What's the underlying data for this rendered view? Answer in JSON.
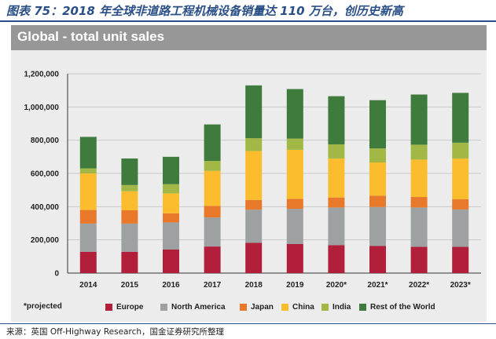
{
  "figure_title": "图表 75：2018 年全球非道路工程机械设备销量达 110 万台，创历史新高",
  "panel_title": "Global - total unit sales",
  "legend_note": "*projected",
  "source": "来源：英国 Off-Highway Research，国金证券研究所整理",
  "colors": {
    "title": "#2a4f86",
    "header": "#979797",
    "panel": "#ececec",
    "Europe": "#b21f3a",
    "North America": "#9ea1a2",
    "Japan": "#e8792b",
    "China": "#fbbd2d",
    "India": "#a2b846",
    "Rest of the World": "#3f7b3c"
  },
  "chart_data": {
    "type": "stacked-bar",
    "title": "Global - total unit sales",
    "categories": [
      "2014",
      "2015",
      "2016",
      "2017",
      "2018",
      "2019",
      "2020*",
      "2021*",
      "2022*",
      "2023*"
    ],
    "ylim": [
      0,
      1200000
    ],
    "yticks": [
      0,
      200000,
      400000,
      600000,
      800000,
      1000000,
      1200000
    ],
    "ytick_labels": [
      "0",
      "200,000",
      "400,000",
      "600,000",
      "800,000",
      "1,000,000",
      "1,200,000"
    ],
    "grid": true,
    "legend_position": "bottom",
    "series": [
      {
        "name": "Europe",
        "values": [
          128000,
          128000,
          142000,
          160000,
          182000,
          175000,
          168000,
          163000,
          158000,
          158000
        ]
      },
      {
        "name": "North America",
        "values": [
          170000,
          170000,
          163000,
          175000,
          200000,
          212000,
          227000,
          235000,
          237000,
          225000
        ]
      },
      {
        "name": "Japan",
        "values": [
          82000,
          80000,
          55000,
          70000,
          58000,
          60000,
          60000,
          68000,
          63000,
          62000
        ]
      },
      {
        "name": "China",
        "values": [
          220000,
          115000,
          120000,
          210000,
          295000,
          295000,
          235000,
          200000,
          225000,
          245000
        ]
      },
      {
        "name": "India",
        "values": [
          30000,
          37000,
          55000,
          60000,
          77000,
          68000,
          85000,
          85000,
          90000,
          95000
        ]
      },
      {
        "name": "Rest of the World",
        "values": [
          190000,
          160000,
          165000,
          220000,
          318000,
          298000,
          290000,
          290000,
          302000,
          300000
        ]
      }
    ]
  }
}
